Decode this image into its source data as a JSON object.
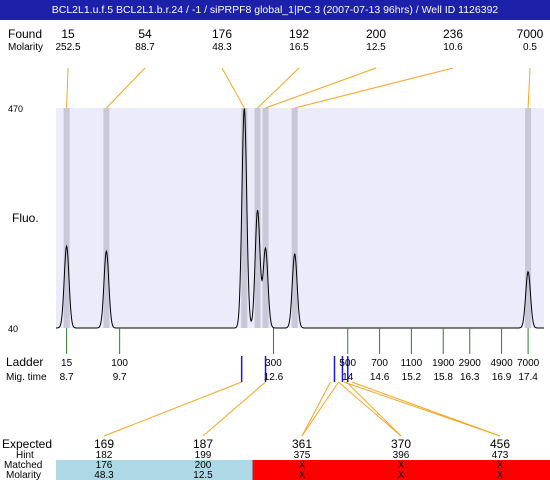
{
  "header": {
    "title": "BCL2L1.u.f.5  BCL2L1.b.r.24 / -1 / siPRPF8 global_1|PC 3 (2007-07-13 96hrs) / Well ID 1126392"
  },
  "labels": {
    "found": "Found",
    "molarity": "Molarity",
    "fluo": "Fluo.",
    "ladder": "Ladder",
    "mig_time": "Mig. time",
    "expected": "Expected",
    "hint": "Hint",
    "matched": "Matched",
    "molarity_bottom": "Molarity"
  },
  "colors": {
    "header_bg": "#1d20a8",
    "plot_bg": "#ebebfa",
    "peak_band": "#c8c8d8",
    "leader_line": "#f5a623",
    "ladder_tick": "#2e7d32",
    "marker_blue": "#1a1ad6",
    "expected_highlight": "#e0201c",
    "matched_ok": "#add8e6",
    "matched_missing": "#ff0000"
  },
  "chart_data": {
    "type": "line",
    "title": "",
    "ylabel": "Fluo.",
    "y_ticks": [
      "470",
      "40"
    ],
    "ylim": [
      40,
      470
    ],
    "ladder_mig_time_range": [
      8.5,
      17.7
    ],
    "found": [
      {
        "size": "15",
        "molarity": "252.5",
        "mig_time": 8.7
      },
      {
        "size": "54",
        "molarity": "88.7",
        "mig_time": 9.45
      },
      {
        "size": "176",
        "molarity": "48.3",
        "mig_time": 12.05
      },
      {
        "size": "192",
        "molarity": "16.5",
        "mig_time": 12.3
      },
      {
        "size": "200",
        "molarity": "12.5",
        "mig_time": 12.45
      },
      {
        "size": "236",
        "molarity": "10.6",
        "mig_time": 13.0
      },
      {
        "size": "7000",
        "molarity": "0.5",
        "mig_time": 17.4
      }
    ],
    "trace_peaks": [
      {
        "mig_time": 8.7,
        "height": 200
      },
      {
        "mig_time": 9.45,
        "height": 190
      },
      {
        "mig_time": 12.05,
        "height": 470
      },
      {
        "mig_time": 12.3,
        "height": 270
      },
      {
        "mig_time": 12.45,
        "height": 195
      },
      {
        "mig_time": 13.0,
        "height": 185
      },
      {
        "mig_time": 17.4,
        "height": 150
      }
    ],
    "ladder": [
      {
        "size": "15",
        "mig_time": "8.7"
      },
      {
        "size": "100",
        "mig_time": "9.7"
      },
      {
        "size": "300",
        "mig_time": "12.6"
      },
      {
        "size": "500",
        "mig_time": "14"
      },
      {
        "size": "700",
        "mig_time": "14.6"
      },
      {
        "size": "1100",
        "mig_time": "15.2"
      },
      {
        "size": "1900",
        "mig_time": "15.8"
      },
      {
        "size": "2900",
        "mig_time": "16.3"
      },
      {
        "size": "4900",
        "mig_time": "16.9"
      },
      {
        "size": "7000",
        "mig_time": "17.4"
      }
    ],
    "expected": [
      {
        "size": "169",
        "hint": "182",
        "matched": "176",
        "molarity": "48.3",
        "highlight": true,
        "mig_time": 12.0
      },
      {
        "size": "187",
        "hint": "199",
        "matched": "200",
        "molarity": "12.5",
        "highlight": true,
        "mig_time": 12.45
      },
      {
        "size": "361",
        "hint": "375",
        "matched": "X",
        "molarity": "X",
        "highlight": false,
        "mig_time": 13.75
      },
      {
        "size": "370",
        "hint": "396",
        "matched": "X",
        "molarity": "X",
        "highlight": false,
        "mig_time": 13.9
      },
      {
        "size": "456",
        "hint": "473",
        "matched": "X",
        "molarity": "X",
        "highlight": false,
        "mig_time": 14.0
      }
    ]
  }
}
